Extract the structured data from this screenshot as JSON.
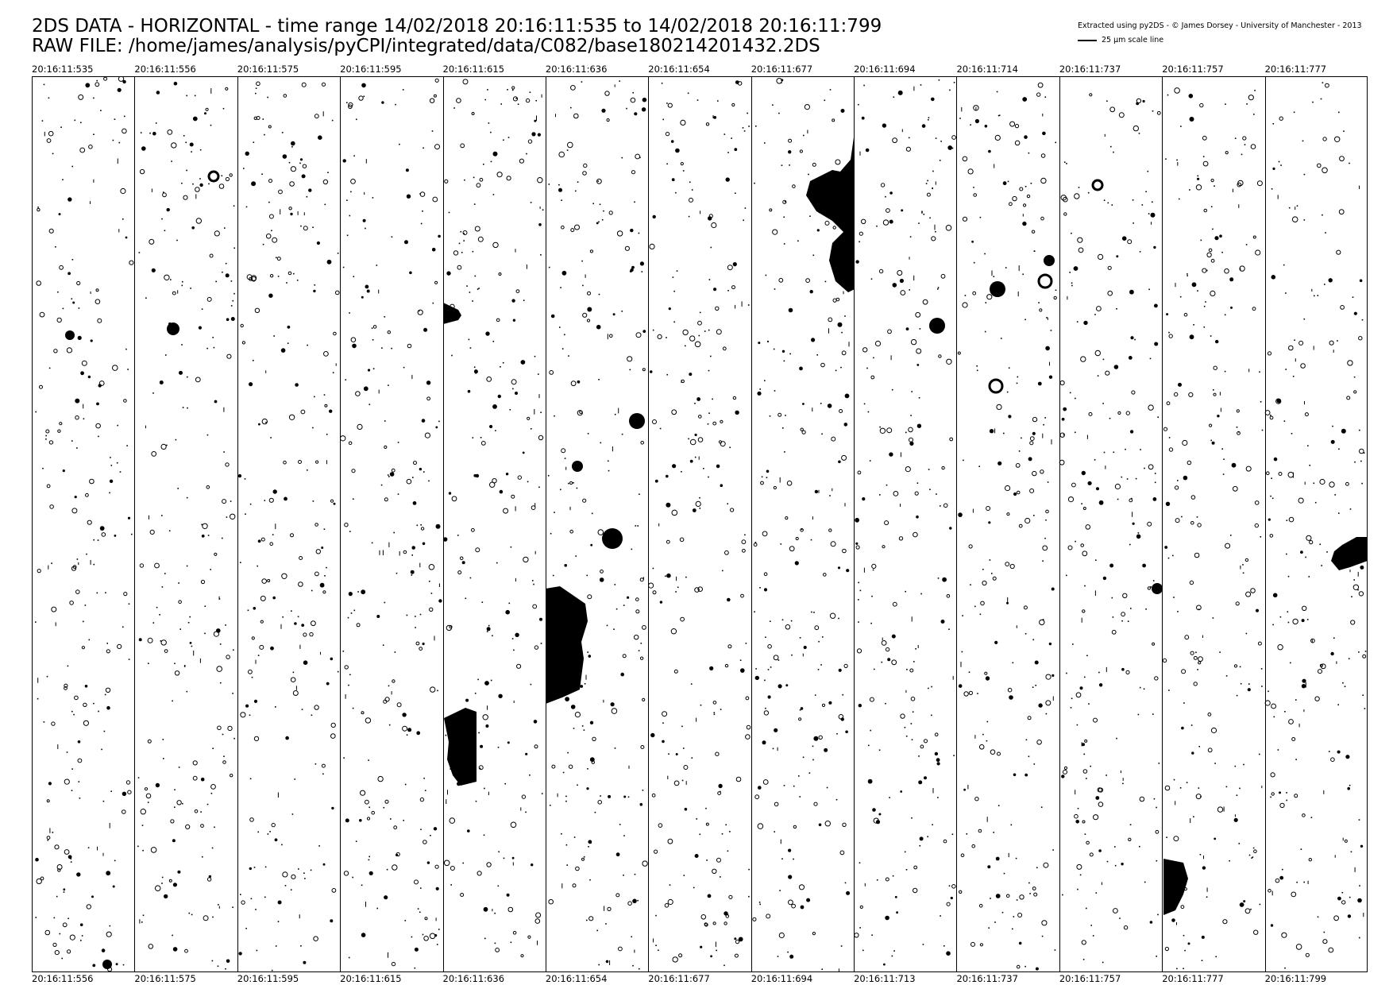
{
  "header": {
    "title_line_1": "2DS DATA - HORIZONTAL - time range 14/02/2018 20:16:11:535 to 14/02/2018 20:16:11:799",
    "title_line_2": "RAW FILE: /home/james/analysis/pyCPI/integrated/data/C082/base180214201432.2DS",
    "credit": "Extracted using py2DS - © James Dorsey - University of Manchester - 2013",
    "scale_label": "25 μm scale line"
  },
  "strips": {
    "count": 13,
    "start_labels": [
      "20:16:11:535",
      "20:16:11:556",
      "20:16:11:575",
      "20:16:11:595",
      "20:16:11:615",
      "20:16:11:636",
      "20:16:11:654",
      "20:16:11:677",
      "20:16:11:694",
      "20:16:11:714",
      "20:16:11:737",
      "20:16:11:757",
      "20:16:11:777"
    ],
    "end_labels": [
      "20:16:11:556",
      "20:16:11:575",
      "20:16:11:595",
      "20:16:11:615",
      "20:16:11:636",
      "20:16:11:654",
      "20:16:11:677",
      "20:16:11:694",
      "20:16:11:713",
      "20:16:11:737",
      "20:16:11:757",
      "20:16:11:777",
      "20:16:11:799"
    ]
  },
  "colors": {
    "background": "#ffffff",
    "ink": "#000000"
  }
}
